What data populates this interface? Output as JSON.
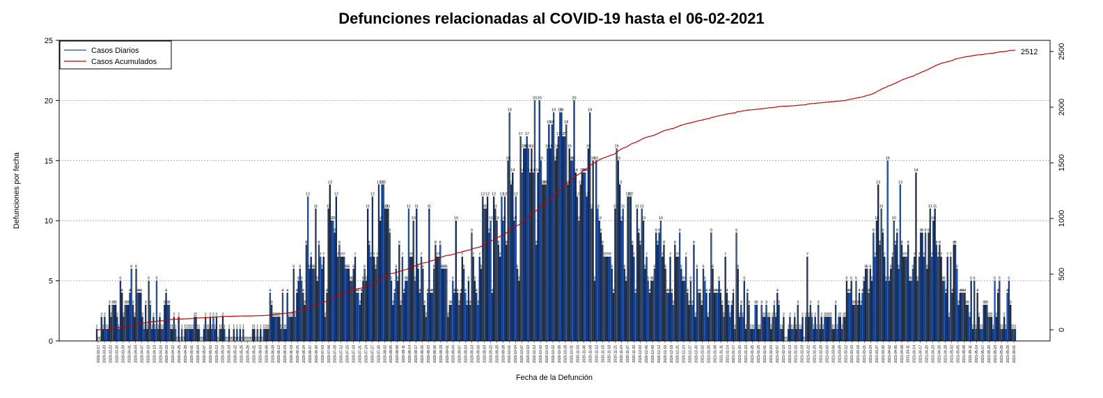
{
  "chart_data": {
    "type": "bar",
    "title": "Defunciones relacionadas al COVID-19 hasta el 06-02-2021",
    "xlabel": "Fecha de la Defunción",
    "ylabel": "Defunciones por fecha",
    "ylim": [
      0,
      25
    ],
    "y_ticks": [
      0,
      5,
      10,
      15,
      20,
      25
    ],
    "y2lim": [
      -100,
      2600
    ],
    "y2_ticks": [
      0,
      500,
      1000,
      1500,
      2000,
      2500
    ],
    "grid": "horizontal dotted",
    "legend_position": "top-left",
    "series": [
      {
        "name": "Casos Diarios",
        "color": "#1f4e9c",
        "values": [
          1,
          0,
          0,
          2,
          1,
          2,
          1,
          1,
          3,
          2,
          3,
          3,
          3,
          2,
          1,
          5,
          4,
          2,
          3,
          3,
          3,
          4,
          6,
          3,
          2,
          6,
          4,
          4,
          4,
          2,
          1,
          3,
          1,
          5,
          3,
          1,
          2,
          1,
          5,
          1,
          2,
          1,
          1,
          3,
          4,
          3,
          3,
          1,
          1,
          2,
          1,
          0,
          2,
          0,
          1,
          0,
          1,
          1,
          1,
          1,
          1,
          1,
          2,
          2,
          1,
          1,
          0,
          0,
          1,
          2,
          1,
          1,
          2,
          1,
          2,
          1,
          2,
          0,
          1,
          1,
          2,
          1,
          0,
          0,
          1,
          0,
          0,
          1,
          0,
          1,
          0,
          1,
          0,
          1,
          0,
          0,
          0,
          0,
          0,
          1,
          1,
          0,
          1,
          0,
          1,
          0,
          1,
          1,
          1,
          1,
          4,
          3,
          2,
          2,
          2,
          2,
          2,
          1,
          4,
          1,
          1,
          4,
          2,
          2,
          2,
          6,
          2,
          4,
          5,
          6,
          5,
          4,
          3,
          8,
          12,
          6,
          7,
          6,
          6,
          11,
          5,
          8,
          7,
          6,
          7,
          2,
          4,
          11,
          13,
          10,
          10,
          9,
          12,
          7,
          8,
          7,
          7,
          7,
          6,
          6,
          6,
          5,
          5,
          6,
          7,
          4,
          4,
          3,
          4,
          5,
          6,
          5,
          11,
          8,
          7,
          12,
          7,
          6,
          7,
          13,
          10,
          13,
          13,
          11,
          11,
          11,
          9,
          5,
          3,
          4,
          6,
          5,
          8,
          3,
          7,
          4,
          5,
          5,
          11,
          7,
          7,
          10,
          5,
          11,
          6,
          4,
          7,
          6,
          3,
          2,
          4,
          11,
          4,
          4,
          6,
          8,
          7,
          7,
          8,
          6,
          6,
          6,
          6,
          2,
          3,
          3,
          5,
          4,
          10,
          4,
          3,
          4,
          7,
          6,
          4,
          3,
          5,
          3,
          9,
          7,
          5,
          4,
          3,
          7,
          6,
          12,
          11,
          11,
          12,
          9,
          10,
          4,
          12,
          11,
          10,
          8,
          7,
          12,
          10,
          12,
          8,
          15,
          19,
          13,
          14,
          10,
          12,
          6,
          5,
          17,
          14,
          16,
          16,
          17,
          16,
          14,
          16,
          14,
          20,
          8,
          14,
          20,
          15,
          13,
          13,
          13,
          16,
          18,
          16,
          18,
          19,
          15,
          16,
          17,
          19,
          19,
          17,
          17,
          18,
          13,
          16,
          15,
          15,
          20,
          14,
          12,
          10,
          13,
          14,
          14,
          14,
          12,
          16,
          19,
          11,
          15,
          5,
          15,
          11,
          10,
          9,
          8,
          7,
          7,
          7,
          7,
          7,
          6,
          4,
          11,
          16,
          15,
          13,
          10,
          11,
          6,
          5,
          12,
          12,
          12,
          8,
          7,
          4,
          11,
          9,
          8,
          11,
          10,
          6,
          7,
          5,
          4,
          5,
          5,
          6,
          9,
          8,
          9,
          10,
          7,
          8,
          6,
          4,
          4,
          7,
          4,
          3,
          8,
          7,
          7,
          9,
          6,
          5,
          5,
          7,
          4,
          3,
          5,
          3,
          8,
          2,
          6,
          4,
          4,
          3,
          6,
          5,
          4,
          2,
          4,
          9,
          6,
          4,
          4,
          4,
          5,
          4,
          3,
          2,
          7,
          4,
          3,
          2,
          3,
          4,
          1,
          9,
          6,
          2,
          3,
          2,
          5,
          1,
          4,
          3,
          1,
          1,
          1,
          3,
          3,
          1,
          1,
          3,
          2,
          2,
          3,
          2,
          2,
          1,
          2,
          3,
          2,
          4,
          3,
          1,
          1,
          2,
          0,
          0,
          1,
          2,
          1,
          1,
          2,
          1,
          3,
          1,
          1,
          2,
          0,
          2,
          7,
          2,
          3,
          2,
          1,
          2,
          1,
          3,
          1,
          2,
          1,
          2,
          2,
          2,
          2,
          2,
          1,
          1,
          3,
          1,
          2,
          2,
          1,
          2,
          2,
          5,
          4,
          4,
          5,
          3,
          3,
          5,
          3,
          4,
          3,
          4,
          5,
          6,
          6,
          4,
          6,
          5,
          9,
          7,
          10,
          13,
          8,
          11,
          9,
          7,
          5,
          15,
          5,
          6,
          7,
          10,
          8,
          9,
          6,
          13,
          8,
          7,
          7,
          7,
          8,
          5,
          5,
          6,
          7,
          14,
          5,
          7,
          9,
          9,
          7,
          9,
          6,
          9,
          11,
          7,
          10,
          11,
          8,
          7,
          8,
          7,
          5,
          5,
          4,
          7,
          2,
          7,
          4,
          8,
          8,
          6,
          3,
          4,
          4,
          4,
          4,
          3,
          3,
          2,
          5,
          1,
          5,
          1,
          4,
          2,
          1,
          1,
          3,
          3,
          3,
          2,
          2,
          2,
          1,
          5,
          2,
          4,
          5,
          1,
          1,
          2,
          1,
          4,
          5,
          3,
          1,
          1,
          1
        ]
      },
      {
        "name": "Casos Acumulados",
        "color": "#c00000",
        "final_value": 2512
      }
    ],
    "x_tick_labels": [
      "2020-03-17",
      "2020-03-20",
      "2020-03-23",
      "2020-03-26",
      "2020-03-29",
      "2020-04-01",
      "2020-04-04",
      "2020-04-07",
      "2020-04-10",
      "2020-04-13",
      "2020-04-16",
      "2020-04-19",
      "2020-04-22",
      "2020-04-25",
      "2020-04-28",
      "2020-05-01",
      "2020-05-04",
      "2020-05-07",
      "2020-05-10",
      "2020-05-13",
      "2020-05-16",
      "2020-05-19",
      "2020-05-22",
      "2020-05-25",
      "2020-05-28",
      "2020-05-31",
      "2020-06-03",
      "2020-06-06",
      "2020-06-09",
      "2020-06-12",
      "2020-06-15",
      "2020-06-18",
      "2020-06-21",
      "2020-06-24",
      "2020-06-27",
      "2020-06-30",
      "2020-07-03",
      "2020-07-06",
      "2020-07-09",
      "2020-07-12",
      "2020-07-15",
      "2020-07-18",
      "2020-07-21",
      "2020-07-24",
      "2020-07-27",
      "2020-07-30",
      "2020-08-02",
      "2020-08-05",
      "2020-08-08",
      "2020-08-11",
      "2020-08-14",
      "2020-08-17",
      "2020-08-20",
      "2020-08-23",
      "2020-08-26",
      "2020-08-29",
      "2020-09-01",
      "2020-09-04",
      "2020-09-07",
      "2020-09-10",
      "2020-09-13",
      "2020-09-16",
      "2020-09-19",
      "2020-09-22",
      "2020-09-25",
      "2020-09-28",
      "2020-10-01",
      "2020-10-04",
      "2020-10-07",
      "2020-10-10",
      "2020-10-13",
      "2020-10-16",
      "2020-10-19",
      "2020-10-22",
      "2020-10-25",
      "2020-10-28",
      "2020-10-31",
      "2020-11-03",
      "2020-11-06",
      "2020-11-09",
      "2020-11-12",
      "2020-11-15",
      "2020-11-18",
      "2020-11-21",
      "2020-11-24",
      "2020-11-27",
      "2020-11-30",
      "2020-12-03",
      "2020-12-06",
      "2020-12-09",
      "2020-12-12",
      "2020-12-15",
      "2020-12-18",
      "2020-12-21",
      "2020-12-24",
      "2020-12-27",
      "2020-12-30",
      "2021-01-02",
      "2021-01-05",
      "2021-01-08",
      "2021-01-11",
      "2021-01-14",
      "2021-01-17",
      "2021-01-20",
      "2021-01-23",
      "2021-01-26",
      "2021-01-29",
      "2021-02-01",
      "2021-02-04",
      "2021-02-07",
      "2021-02-10",
      "2021-02-13",
      "2021-02-16",
      "2021-02-19",
      "2021-02-22",
      "2021-02-25",
      "2021-02-28",
      "2021-03-03",
      "2021-03-06",
      "2021-03-09",
      "2021-03-12",
      "2021-03-15",
      "2021-03-18",
      "2021-03-21",
      "2021-03-24",
      "2021-03-27",
      "2021-03-30",
      "2021-04-02",
      "2021-04-05",
      "2021-04-08",
      "2021-04-11",
      "2021-04-14",
      "2021-04-17",
      "2021-04-20",
      "2021-04-23",
      "2021-04-26",
      "2021-04-29",
      "2021-05-02",
      "2021-05-05",
      "2021-05-08",
      "2021-05-11",
      "2021-05-14",
      "2021-05-17",
      "2021-05-20",
      "2021-05-23",
      "2021-05-26",
      "2021-05-29",
      "2021-06-01"
    ]
  }
}
